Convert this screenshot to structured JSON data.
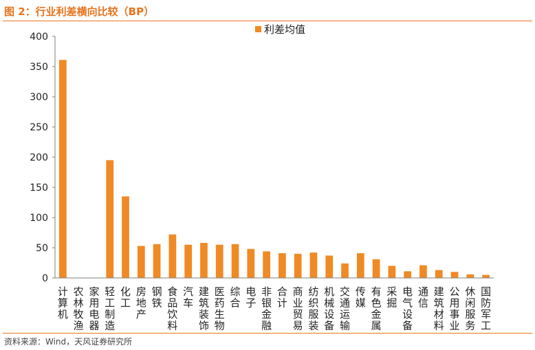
{
  "figure": {
    "title": "图 2：行业利差横向比较（BP）",
    "source": "资料来源：Wind，天风证券研究所"
  },
  "colors": {
    "accent": "#e8731c",
    "bar": "#f08a24",
    "axis": "#7f7f7f"
  },
  "chart_data": {
    "type": "bar",
    "title": "",
    "xlabel": "",
    "ylabel": "",
    "ylim": [
      0,
      400
    ],
    "yticks": [
      0,
      50,
      100,
      150,
      200,
      250,
      300,
      350,
      400
    ],
    "grid": false,
    "legend": {
      "position": "top-center",
      "entries": [
        "利差均值"
      ]
    },
    "categories": [
      "计算机",
      "农林牧渔",
      "家用电器",
      "轻工制造",
      "化工",
      "房地产",
      "钢铁",
      "食品饮料",
      "汽车",
      "建筑装饰",
      "医药生物",
      "综合",
      "电子",
      "非银金融",
      "合计",
      "商业贸易",
      "纺织服装",
      "机械设备",
      "交通运输",
      "传媒",
      "有色金属",
      "采掘",
      "电气设备",
      "通信",
      "建筑材料",
      "公用事业",
      "休闲服务",
      "国防军工"
    ],
    "series": [
      {
        "name": "利差均值",
        "values": [
          361,
          0,
          0,
          195,
          135,
          53,
          56,
          72,
          55,
          58,
          55,
          56,
          48,
          44,
          41,
          40,
          42,
          37,
          24,
          41,
          31,
          20,
          11,
          21,
          13,
          10,
          6,
          5
        ]
      }
    ]
  }
}
